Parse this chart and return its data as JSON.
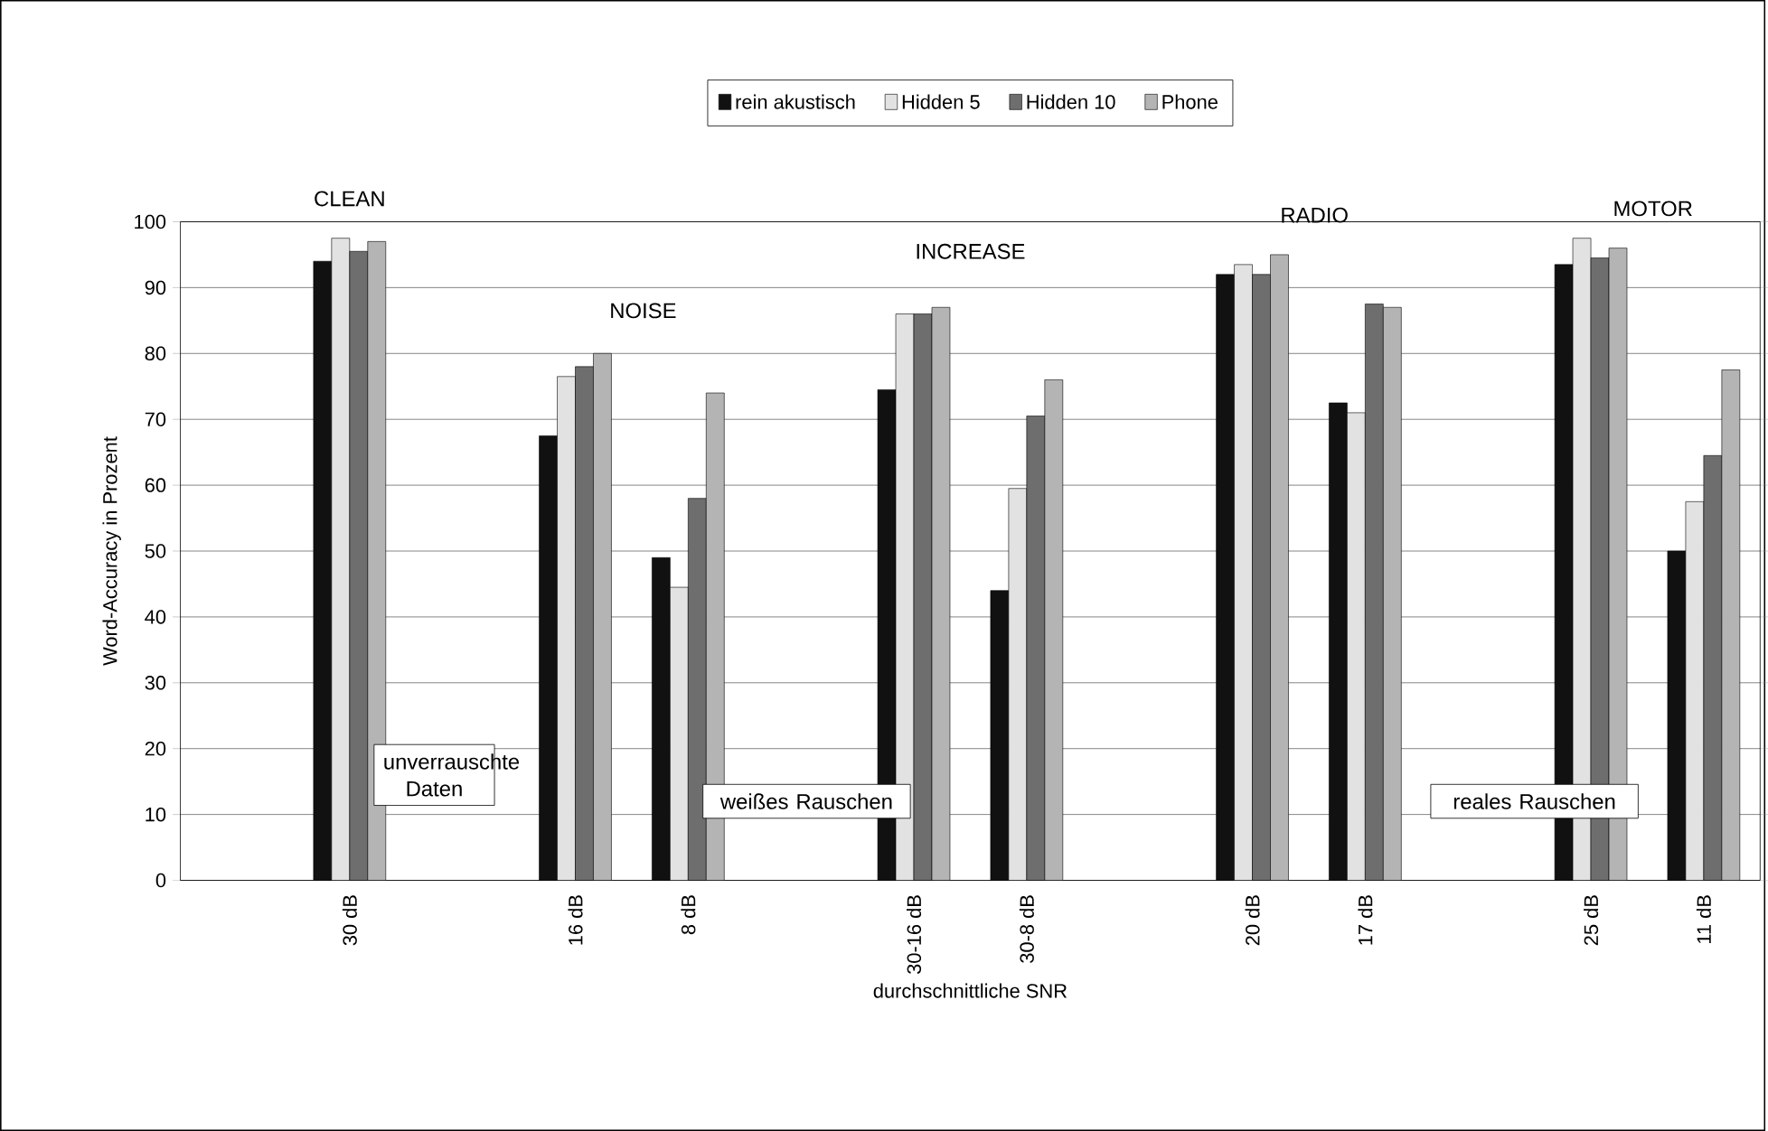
{
  "chart_data": {
    "type": "bar",
    "xlabel": "durchschnittliche SNR",
    "ylabel": "Word-Accuracy in Prozent",
    "categories": [
      null,
      "30 dB",
      null,
      "16 dB",
      "8 dB",
      null,
      "30-16 dB",
      "30-8 dB",
      null,
      "20 dB",
      "17 dB",
      null,
      "25 dB",
      "11 dB"
    ],
    "series": [
      {
        "name": "rein akustisch",
        "color": "#111111",
        "values": [
          null,
          94,
          null,
          67.5,
          49,
          null,
          74.5,
          44,
          null,
          92,
          72.5,
          null,
          93.5,
          50
        ]
      },
      {
        "name": "Hidden 5",
        "color": "#e2e2e2",
        "values": [
          null,
          97.5,
          null,
          76.5,
          44.5,
          null,
          86,
          59.5,
          null,
          93.5,
          71,
          null,
          97.5,
          57.5
        ]
      },
      {
        "name": "Hidden 10",
        "color": "#6e6e6e",
        "values": [
          null,
          95.5,
          null,
          78,
          58,
          null,
          86,
          70.5,
          null,
          92,
          87.5,
          null,
          94.5,
          64.5
        ]
      },
      {
        "name": "Phone",
        "color": "#b4b4b4",
        "values": [
          null,
          97,
          null,
          80,
          74,
          null,
          87,
          76,
          null,
          95,
          87,
          null,
          96,
          77.5
        ]
      }
    ],
    "ylim": [
      0,
      100
    ],
    "yticks": [
      0,
      10,
      20,
      30,
      40,
      50,
      60,
      70,
      80,
      90,
      100
    ],
    "grid": "y",
    "legend": "top",
    "annotations": [
      "CLEAN",
      "NOISE",
      "INCREASE",
      "RADIO",
      "MOTOR",
      "unverrauschte Daten",
      "weißes Rauschen",
      "reales Rauschen"
    ]
  }
}
